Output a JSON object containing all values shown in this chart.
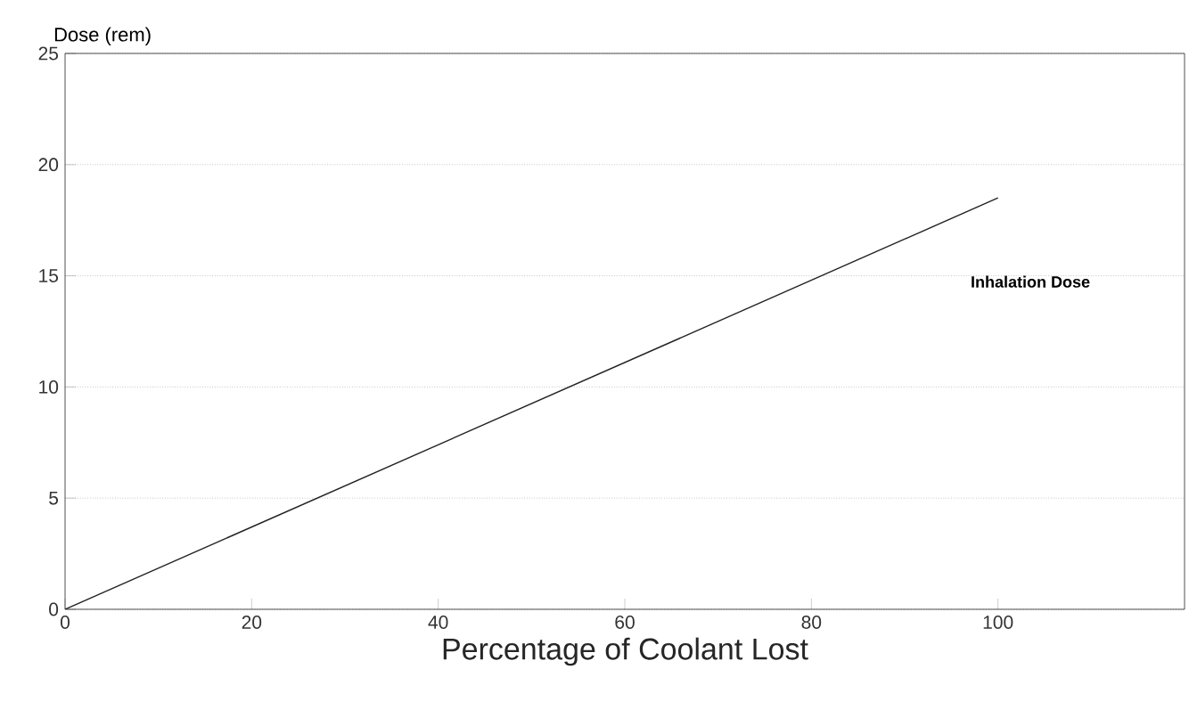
{
  "chart_data": {
    "type": "line",
    "xlabel": "Percentage of Coolant Lost",
    "ylabel": "Dose (rem)",
    "x": [
      0,
      100
    ],
    "series": [
      {
        "name": "Inhalation Dose",
        "color": "#222222",
        "values": [
          0,
          18.5
        ]
      }
    ],
    "xlim": [
      0,
      120
    ],
    "ylim": [
      0,
      25
    ],
    "xticks": [
      0,
      20,
      40,
      60,
      80,
      100
    ],
    "yticks": [
      0,
      5,
      10,
      15,
      20,
      25
    ],
    "grid": "y",
    "marker": "none",
    "line_style": "solid"
  }
}
